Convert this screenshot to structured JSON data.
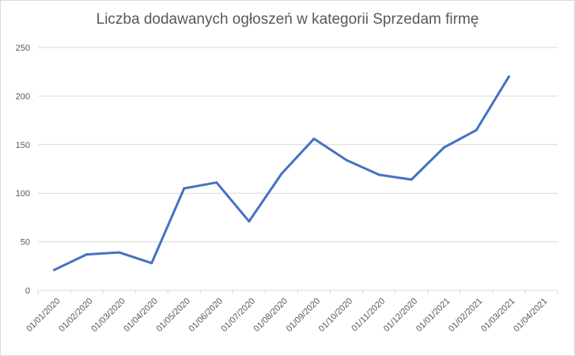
{
  "chart_data": {
    "type": "line",
    "title": "Liczba dodawanych ogłoszeń w kategorii Sprzedam firmę",
    "xlabel": "",
    "ylabel": "",
    "x": [
      "01/01/2020",
      "01/02/2020",
      "01/03/2020",
      "01/04/2020",
      "01/05/2020",
      "01/06/2020",
      "01/07/2020",
      "01/08/2020",
      "01/09/2020",
      "01/10/2020",
      "01/11/2020",
      "01/12/2020",
      "01/01/2021",
      "01/02/2021",
      "01/03/2021",
      "01/04/2021"
    ],
    "series": [
      {
        "values": [
          21,
          37,
          39,
          28,
          105,
          111,
          71,
          120,
          156,
          134,
          119,
          114,
          147,
          165,
          220,
          null
        ]
      }
    ],
    "yticks": [
      0,
      50,
      100,
      150,
      200,
      250
    ],
    "ylim": [
      0,
      250
    ],
    "grid": true,
    "legend": "none",
    "line_color": "#4472c4",
    "grid_color": "#d9d9d9"
  }
}
